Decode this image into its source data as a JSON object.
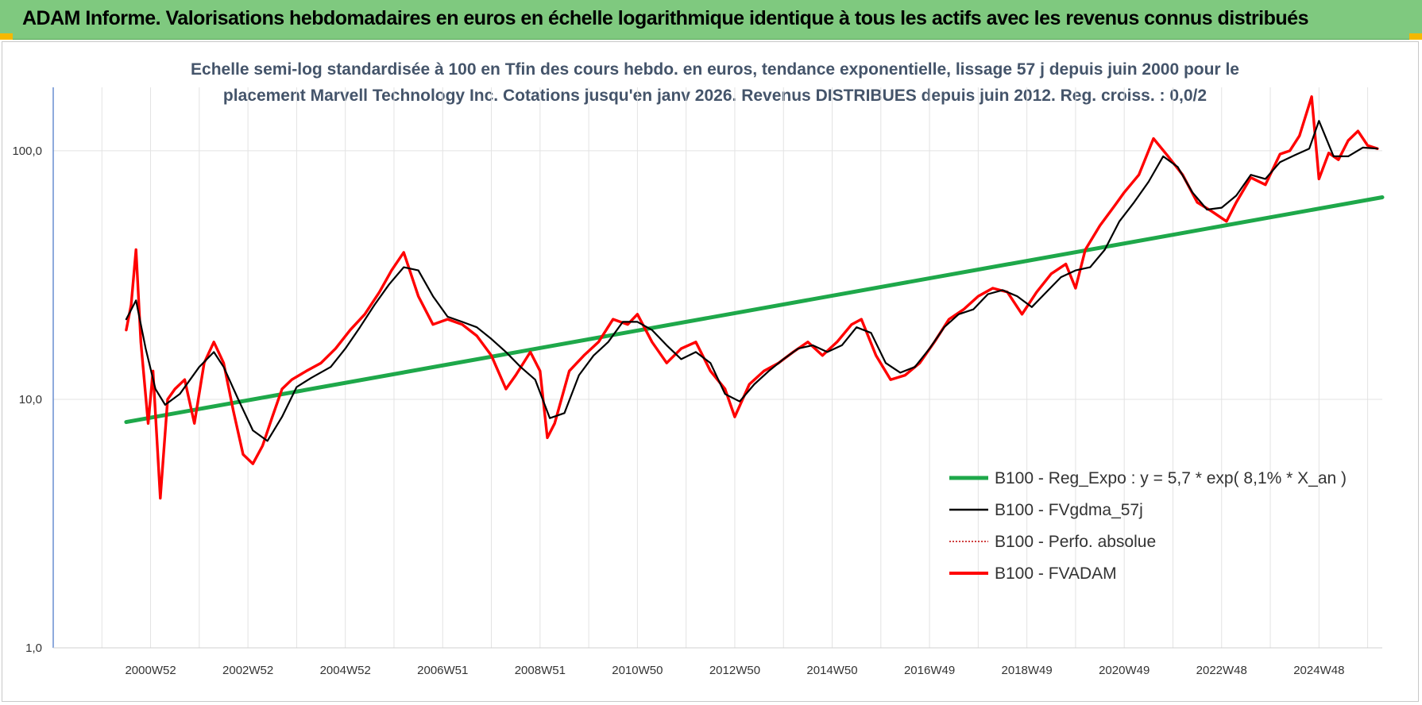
{
  "header": {
    "title": "ADAM Informe. Valorisations hebdomadaires en euros en échelle logarithmique identique à tous les actifs avec les revenus connus distribués"
  },
  "chart_data": {
    "type": "line",
    "title_line1": "Echelle semi-log standardisée à 100 en Tfin des cours hebdo. en euros, tendance exponentielle, lissage 57 j depuis juin 2000 pour le",
    "title_line2": "placement Marvell Technology Inc. Cotations jusqu'en janv 2026. Revenus DISTRIBUES depuis juin 2012. Reg. croiss. : 0,0/2",
    "y_scale": "log",
    "ylim": [
      1,
      180
    ],
    "y_ticks": [
      {
        "v": 1,
        "label": "1,0"
      },
      {
        "v": 10,
        "label": "10,0"
      },
      {
        "v": 100,
        "label": "100,0"
      }
    ],
    "x_range": [
      1999.0,
      2026.3
    ],
    "x_ticks": [
      {
        "t": 2001.0,
        "label": "2000W52"
      },
      {
        "t": 2003.0,
        "label": "2002W52"
      },
      {
        "t": 2005.0,
        "label": "2004W52"
      },
      {
        "t": 2007.0,
        "label": "2006W51"
      },
      {
        "t": 2009.0,
        "label": "2008W51"
      },
      {
        "t": 2011.0,
        "label": "2010W50"
      },
      {
        "t": 2013.0,
        "label": "2012W50"
      },
      {
        "t": 2015.0,
        "label": "2014W50"
      },
      {
        "t": 2017.0,
        "label": "2016W49"
      },
      {
        "t": 2019.0,
        "label": "2018W49"
      },
      {
        "t": 2021.0,
        "label": "2020W49"
      },
      {
        "t": 2023.0,
        "label": "2022W48"
      },
      {
        "t": 2025.0,
        "label": "2024W48"
      }
    ],
    "grid": true,
    "legend_position": "bottom-right",
    "series": [
      {
        "name": "B100 - Reg_Expo : y = 5,7 * exp( 8,1% *  X_an )",
        "color": "#1ea84a",
        "style": "thick",
        "x": [
          2000.5,
          2026.3
        ],
        "y": [
          8.1,
          65
        ]
      },
      {
        "name": "B100 - FVgdma_57j",
        "color": "#000000",
        "style": "solid",
        "x": [
          2000.5,
          2000.7,
          2000.9,
          2001.1,
          2001.3,
          2001.6,
          2002.0,
          2002.3,
          2002.5,
          2002.8,
          2003.1,
          2003.4,
          2003.7,
          2004.0,
          2004.3,
          2004.7,
          2005.0,
          2005.3,
          2005.6,
          2005.9,
          2006.2,
          2006.5,
          2006.8,
          2007.1,
          2007.4,
          2007.7,
          2008.0,
          2008.3,
          2008.6,
          2008.9,
          2009.2,
          2009.5,
          2009.8,
          2010.1,
          2010.4,
          2010.7,
          2011.0,
          2011.3,
          2011.6,
          2011.9,
          2012.2,
          2012.5,
          2012.8,
          2013.1,
          2013.4,
          2013.7,
          2014.0,
          2014.3,
          2014.6,
          2014.9,
          2015.2,
          2015.5,
          2015.8,
          2016.1,
          2016.4,
          2016.7,
          2017.0,
          2017.3,
          2017.6,
          2017.9,
          2018.2,
          2018.5,
          2018.8,
          2019.1,
          2019.4,
          2019.7,
          2020.0,
          2020.3,
          2020.6,
          2020.9,
          2021.2,
          2021.5,
          2021.8,
          2022.1,
          2022.4,
          2022.7,
          2023.0,
          2023.3,
          2023.6,
          2023.9,
          2024.2,
          2024.5,
          2024.8,
          2025.0,
          2025.3,
          2025.6,
          2025.9,
          2026.2
        ],
        "y": [
          21,
          25,
          16,
          11,
          9.5,
          10.5,
          13.5,
          15.5,
          13.5,
          10,
          7.5,
          6.8,
          8.5,
          11.2,
          12.2,
          13.5,
          16,
          19.5,
          24,
          29,
          34,
          33,
          26,
          21.5,
          20.5,
          19.5,
          17.5,
          15.5,
          13.5,
          12,
          8.4,
          8.8,
          12.5,
          15,
          17,
          20.5,
          20.5,
          19,
          16.5,
          14.5,
          15.5,
          14,
          10.5,
          9.8,
          11.5,
          13,
          14.5,
          16,
          16.5,
          15.5,
          16.5,
          19.5,
          18.5,
          14,
          12.8,
          13.5,
          16,
          19.5,
          22,
          23,
          26.5,
          27.5,
          26,
          23.5,
          27,
          31,
          33,
          34,
          40,
          52,
          62,
          75,
          95,
          86,
          68,
          58,
          59,
          66,
          80,
          77,
          90,
          96,
          102,
          132,
          95,
          95,
          103,
          102
        ]
      },
      {
        "name": "B100 - Perfo. absolue",
        "color": "#c00000",
        "style": "dotted",
        "x": [],
        "y": []
      },
      {
        "name": "B100 - FVADAM",
        "color": "#ff0000",
        "style": "jagged",
        "x": [
          2000.5,
          2000.6,
          2000.7,
          2000.8,
          2000.95,
          2001.05,
          2001.2,
          2001.35,
          2001.5,
          2001.7,
          2001.9,
          2002.1,
          2002.3,
          2002.5,
          2002.7,
          2002.9,
          2003.1,
          2003.3,
          2003.5,
          2003.7,
          2003.9,
          2004.2,
          2004.5,
          2004.8,
          2005.1,
          2005.4,
          2005.7,
          2005.95,
          2006.2,
          2006.5,
          2006.8,
          2007.1,
          2007.4,
          2007.7,
          2008.0,
          2008.3,
          2008.5,
          2008.8,
          2009.0,
          2009.15,
          2009.3,
          2009.6,
          2009.9,
          2010.2,
          2010.5,
          2010.8,
          2011.0,
          2011.3,
          2011.6,
          2011.9,
          2012.2,
          2012.5,
          2012.8,
          2013.0,
          2013.3,
          2013.6,
          2013.9,
          2014.2,
          2014.5,
          2014.8,
          2015.1,
          2015.4,
          2015.6,
          2015.9,
          2016.2,
          2016.5,
          2016.8,
          2017.1,
          2017.4,
          2017.7,
          2018.0,
          2018.3,
          2018.6,
          2018.9,
          2019.2,
          2019.5,
          2019.8,
          2020.0,
          2020.2,
          2020.5,
          2020.8,
          2021.0,
          2021.3,
          2021.6,
          2021.9,
          2022.2,
          2022.5,
          2022.8,
          2023.1,
          2023.3,
          2023.6,
          2023.9,
          2024.2,
          2024.4,
          2024.6,
          2024.85,
          2025.0,
          2025.2,
          2025.4,
          2025.6,
          2025.8,
          2026.0,
          2026.2
        ],
        "y": [
          19,
          24,
          40,
          17,
          8,
          13,
          4,
          10,
          11,
          12,
          8,
          14,
          17,
          14,
          9,
          6,
          5.5,
          6.5,
          8.5,
          11,
          12,
          13,
          14,
          16,
          19,
          22,
          27,
          33,
          39,
          26,
          20,
          21,
          20,
          18,
          15,
          11,
          12.5,
          15.5,
          13,
          7,
          8,
          13,
          15,
          17,
          21,
          20,
          22,
          17,
          14,
          16,
          17,
          13,
          11,
          8.5,
          11.5,
          13,
          14,
          15.5,
          17,
          15,
          17,
          20,
          21,
          15,
          12,
          12.5,
          14,
          17,
          21,
          23,
          26,
          28,
          27,
          22,
          27,
          32,
          35,
          28,
          40,
          50,
          60,
          68,
          80,
          112,
          95,
          80,
          62,
          57,
          52,
          62,
          78,
          73,
          97,
          100,
          115,
          165,
          77,
          98,
          92,
          110,
          120,
          105,
          102
        ]
      }
    ]
  }
}
